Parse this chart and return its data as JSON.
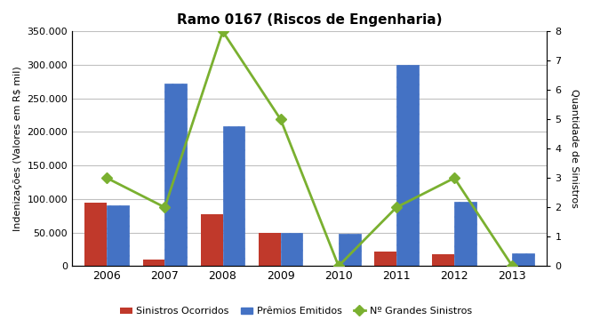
{
  "title": "Ramo 0167 (Riscos de Engenharia)",
  "years": [
    2006,
    2007,
    2008,
    2009,
    2010,
    2011,
    2012,
    2013
  ],
  "sinistros_ocorridos": [
    95000,
    10000,
    77000,
    49000,
    0,
    22000,
    18000,
    0
  ],
  "premios_emitidos": [
    91000,
    272000,
    209000,
    50000,
    48000,
    300000,
    96000,
    19000
  ],
  "grandes_sinistros": [
    3,
    2,
    8,
    5,
    0,
    2,
    3,
    0
  ],
  "ylabel_left": "Indenizações (Valores em R$ mil)",
  "ylabel_right": "Quantidade de Sinistros",
  "ylim_left": [
    0,
    350000
  ],
  "ylim_right": [
    0,
    8
  ],
  "yticks_left": [
    0,
    50000,
    100000,
    150000,
    200000,
    250000,
    300000,
    350000
  ],
  "ytick_labels_left": [
    "0",
    "50.000",
    "100.000",
    "150.000",
    "200.000",
    "250.000",
    "300.000",
    "350.000"
  ],
  "yticks_right": [
    0,
    1,
    2,
    3,
    4,
    5,
    6,
    7,
    8
  ],
  "color_sinistros": "#c0392b",
  "color_premios": "#4472c4",
  "color_grandes": "#7ab030",
  "hatch_premios": "///",
  "legend_sinistros": "Sinistros Ocorridos",
  "legend_premios": "Prêmios Emitidos",
  "legend_grandes": "Nº Grandes Sinistros",
  "bar_width": 0.38,
  "background_color": "#ffffff",
  "grid_color": "#c0c0c0",
  "fig_width": 6.66,
  "fig_height": 3.69,
  "dpi": 100
}
